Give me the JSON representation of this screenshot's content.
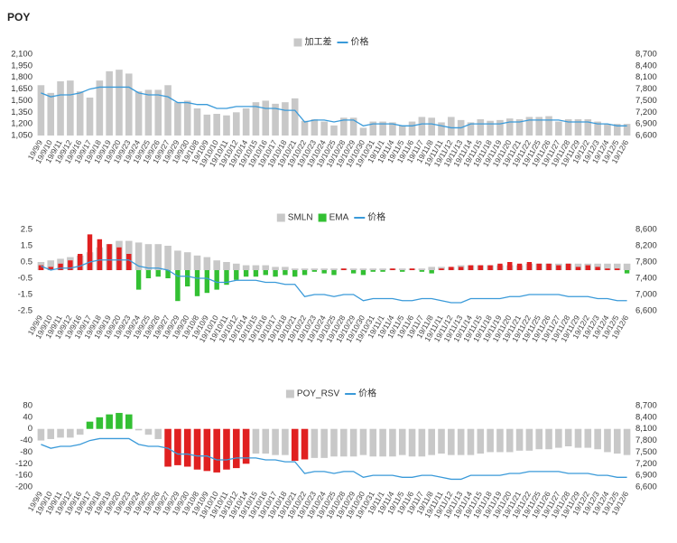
{
  "title": "POY",
  "chart_data": [
    {
      "type": "bar",
      "categories": [
        "19/9/9",
        "19/9/10",
        "19/9/11",
        "19/9/12",
        "19/9/16",
        "19/9/17",
        "19/9/18",
        "19/9/19",
        "19/9/20",
        "19/9/23",
        "19/9/24",
        "19/9/25",
        "19/9/26",
        "19/9/27",
        "19/9/29",
        "19/9/30",
        "19/10/8",
        "19/10/9",
        "19/10/10",
        "19/10/11",
        "19/10/12",
        "19/10/14",
        "19/10/15",
        "19/10/16",
        "19/10/17",
        "19/10/18",
        "19/10/21",
        "19/10/22",
        "19/10/23",
        "19/10/24",
        "19/10/25",
        "19/10/28",
        "19/10/29",
        "19/10/30",
        "19/10/31",
        "19/11/1",
        "19/11/4",
        "19/11/5",
        "19/11/6",
        "19/11/7",
        "19/11/8",
        "19/11/11",
        "19/11/12",
        "19/11/13",
        "19/11/14",
        "19/11/15",
        "19/11/18",
        "19/11/19",
        "19/11/20",
        "19/11/21",
        "19/11/22",
        "19/11/25",
        "19/11/26",
        "19/11/27",
        "19/11/28",
        "19/11/29",
        "19/12/2",
        "19/12/3",
        "19/12/4",
        "19/12/5",
        "19/12/6"
      ],
      "series": [
        {
          "name": "加工差",
          "type": "bar",
          "color": "#c8c8c8",
          "values": [
            1700,
            1600,
            1750,
            1760,
            1620,
            1540,
            1760,
            1880,
            1900,
            1850,
            1620,
            1640,
            1640,
            1700,
            1480,
            1500,
            1400,
            1320,
            1330,
            1310,
            1350,
            1400,
            1480,
            1500,
            1460,
            1480,
            1530,
            1240,
            1260,
            1230,
            1180,
            1280,
            1280,
            1150,
            1230,
            1230,
            1220,
            1180,
            1230,
            1290,
            1280,
            1220,
            1290,
            1250,
            1220,
            1260,
            1240,
            1250,
            1270,
            1260,
            1290,
            1290,
            1300,
            1230,
            1260,
            1260,
            1260,
            1230,
            1200,
            1200,
            1200
          ]
        },
        {
          "name": "价格",
          "type": "line",
          "axis": "y2",
          "color": "#3a9ad9",
          "values": [
            7700,
            7600,
            7650,
            7650,
            7700,
            7800,
            7850,
            7850,
            7850,
            7850,
            7700,
            7650,
            7650,
            7600,
            7450,
            7450,
            7400,
            7400,
            7300,
            7300,
            7350,
            7350,
            7350,
            7300,
            7300,
            7250,
            7250,
            6950,
            7000,
            7000,
            6950,
            7000,
            7000,
            6850,
            6900,
            6900,
            6900,
            6850,
            6850,
            6900,
            6900,
            6850,
            6800,
            6800,
            6900,
            6900,
            6900,
            6900,
            6950,
            6950,
            7000,
            7000,
            7000,
            7000,
            6950,
            6950,
            6950,
            6900,
            6900,
            6850,
            6850
          ]
        }
      ],
      "ylim": [
        1050,
        2100
      ],
      "yticks": [
        {
          "value": 1050,
          "label": "1,050"
        },
        {
          "value": 1200,
          "label": "1,200"
        },
        {
          "value": 1350,
          "label": "1,350"
        },
        {
          "value": 1500,
          "label": "1,500"
        },
        {
          "value": 1650,
          "label": "1,650"
        },
        {
          "value": 1800,
          "label": "1,800"
        },
        {
          "value": 1950,
          "label": "1,950"
        },
        {
          "value": 2100,
          "label": "2,100"
        }
      ],
      "y2lim": [
        6600,
        8700
      ],
      "y2ticks": [
        {
          "value": 6600,
          "label": "6,600"
        },
        {
          "value": 6900,
          "label": "6,900"
        },
        {
          "value": 7200,
          "label": "7,200"
        },
        {
          "value": 7500,
          "label": "7,500"
        },
        {
          "value": 7800,
          "label": "7,800"
        },
        {
          "value": 8100,
          "label": "8,100"
        },
        {
          "value": 8400,
          "label": "8,400"
        },
        {
          "value": 8700,
          "label": "8,700"
        }
      ],
      "grid": false
    },
    {
      "type": "bar",
      "categories": [
        "19/9/9",
        "19/9/10",
        "19/9/11",
        "19/9/12",
        "19/9/16",
        "19/9/17",
        "19/9/18",
        "19/9/19",
        "19/9/20",
        "19/9/23",
        "19/9/24",
        "19/9/25",
        "19/9/26",
        "19/9/27",
        "19/9/29",
        "19/9/30",
        "19/10/8",
        "19/10/9",
        "19/10/10",
        "19/10/11",
        "19/10/12",
        "19/10/14",
        "19/10/15",
        "19/10/16",
        "19/10/17",
        "19/10/18",
        "19/10/21",
        "19/10/22",
        "19/10/23",
        "19/10/24",
        "19/10/25",
        "19/10/28",
        "19/10/29",
        "19/10/30",
        "19/10/31",
        "19/11/1",
        "19/11/4",
        "19/11/5",
        "19/11/6",
        "19/11/7",
        "19/11/8",
        "19/11/11",
        "19/11/12",
        "19/11/13",
        "19/11/14",
        "19/11/15",
        "19/11/18",
        "19/11/19",
        "19/11/20",
        "19/11/21",
        "19/11/22",
        "19/11/25",
        "19/11/26",
        "19/11/27",
        "19/11/28",
        "19/11/29",
        "19/12/2",
        "19/12/3",
        "19/12/4",
        "19/12/5",
        "19/12/6"
      ],
      "series": [
        {
          "name": "SMLN",
          "type": "bar",
          "color": "#c8c8c8",
          "values": [
            0.5,
            0.6,
            0.7,
            0.8,
            0.9,
            1.1,
            1.4,
            1.6,
            1.8,
            1.8,
            1.7,
            1.6,
            1.6,
            1.5,
            1.2,
            1.1,
            0.9,
            0.8,
            0.6,
            0.5,
            0.4,
            0.3,
            0.3,
            0.3,
            0.2,
            0.2,
            0.1,
            0.1,
            0.1,
            0.1,
            0.1,
            0.1,
            0.1,
            0.1,
            0.1,
            0.1,
            0.1,
            0.1,
            0.1,
            0.1,
            0.2,
            0.2,
            0.2,
            0.3,
            0.3,
            0.3,
            0.3,
            0.3,
            0.3,
            0.3,
            0.4,
            0.4,
            0.4,
            0.4,
            0.4,
            0.4,
            0.4,
            0.4,
            0.4,
            0.4,
            0.4
          ]
        },
        {
          "name": "EMA",
          "type": "bar",
          "color": "#33c033",
          "positive_color": "#e02020",
          "values": [
            0.3,
            0.2,
            0.4,
            0.6,
            1.0,
            2.2,
            1.9,
            1.6,
            1.4,
            1.0,
            -1.2,
            -0.5,
            -0.4,
            -0.5,
            -1.9,
            -1.0,
            -1.6,
            -1.4,
            -1.2,
            -0.9,
            -0.6,
            -0.4,
            -0.4,
            -0.3,
            -0.4,
            -0.3,
            -0.4,
            -0.3,
            -0.1,
            -0.2,
            -0.3,
            0.1,
            -0.2,
            -0.3,
            -0.1,
            -0.1,
            0.1,
            -0.1,
            0.1,
            -0.1,
            -0.2,
            0.1,
            0.2,
            0.2,
            0.3,
            0.3,
            0.3,
            0.4,
            0.5,
            0.4,
            0.5,
            0.4,
            0.4,
            0.3,
            0.4,
            0.2,
            0.3,
            0.2,
            0.1,
            0.1,
            -0.2
          ]
        },
        {
          "name": "价格",
          "type": "line",
          "axis": "y2",
          "color": "#3a9ad9",
          "values": [
            7700,
            7600,
            7650,
            7650,
            7700,
            7800,
            7850,
            7850,
            7850,
            7850,
            7700,
            7650,
            7650,
            7600,
            7450,
            7450,
            7400,
            7400,
            7300,
            7300,
            7350,
            7350,
            7350,
            7300,
            7300,
            7250,
            7250,
            6950,
            7000,
            7000,
            6950,
            7000,
            7000,
            6850,
            6900,
            6900,
            6900,
            6850,
            6850,
            6900,
            6900,
            6850,
            6800,
            6800,
            6900,
            6900,
            6900,
            6900,
            6950,
            6950,
            7000,
            7000,
            7000,
            7000,
            6950,
            6950,
            6950,
            6900,
            6900,
            6850,
            6850
          ]
        }
      ],
      "ylim": [
        -2.5,
        2.5
      ],
      "yticks": [
        -2.5,
        -1.5,
        -0.5,
        0.5,
        1.5,
        2.5
      ],
      "y2lim": [
        6600,
        8600
      ],
      "y2ticks": [
        {
          "value": 6600,
          "label": "6,600"
        },
        {
          "value": 7000,
          "label": "7,000"
        },
        {
          "value": 7400,
          "label": "7,400"
        },
        {
          "value": 7800,
          "label": "7,800"
        },
        {
          "value": 8200,
          "label": "8,200"
        },
        {
          "value": 8600,
          "label": "8,600"
        }
      ],
      "grid": false
    },
    {
      "type": "bar",
      "categories": [
        "19/9/9",
        "19/9/10",
        "19/9/11",
        "19/9/12",
        "19/9/16",
        "19/9/17",
        "19/9/18",
        "19/9/19",
        "19/9/20",
        "19/9/23",
        "19/9/24",
        "19/9/25",
        "19/9/26",
        "19/9/27",
        "19/9/29",
        "19/9/30",
        "19/10/8",
        "19/10/9",
        "19/10/10",
        "19/10/11",
        "19/10/12",
        "19/10/14",
        "19/10/15",
        "19/10/16",
        "19/10/17",
        "19/10/18",
        "19/10/21",
        "19/10/22",
        "19/10/23",
        "19/10/24",
        "19/10/25",
        "19/10/28",
        "19/10/29",
        "19/10/30",
        "19/10/31",
        "19/11/1",
        "19/11/4",
        "19/11/5",
        "19/11/6",
        "19/11/7",
        "19/11/8",
        "19/11/11",
        "19/11/12",
        "19/11/13",
        "19/11/14",
        "19/11/15",
        "19/11/18",
        "19/11/19",
        "19/11/20",
        "19/11/21",
        "19/11/22",
        "19/11/25",
        "19/11/26",
        "19/11/27",
        "19/11/28",
        "19/11/29",
        "19/12/2",
        "19/12/3",
        "19/12/4",
        "19/12/5",
        "19/12/6"
      ],
      "series": [
        {
          "name": "POY_RSV",
          "type": "bar",
          "color": "#c8c8c8",
          "values": [
            -40,
            -35,
            -30,
            -30,
            -20,
            25,
            40,
            50,
            55,
            50,
            -5,
            -20,
            -35,
            -130,
            -125,
            -130,
            -140,
            -145,
            -150,
            -140,
            -135,
            -120,
            -85,
            -85,
            -90,
            -90,
            -110,
            -105,
            -100,
            -100,
            -95,
            -95,
            -95,
            -90,
            -95,
            -95,
            -95,
            -90,
            -95,
            -95,
            -90,
            -85,
            -90,
            -90,
            -90,
            -85,
            -80,
            -80,
            -80,
            -75,
            -75,
            -70,
            -70,
            -65,
            -60,
            -65,
            -65,
            -70,
            -80,
            -85,
            -90
          ],
          "colors": [
            "#c8c8c8",
            "#c8c8c8",
            "#c8c8c8",
            "#c8c8c8",
            "#c8c8c8",
            "#33c033",
            "#33c033",
            "#33c033",
            "#33c033",
            "#33c033",
            "#c8c8c8",
            "#c8c8c8",
            "#c8c8c8",
            "#e02020",
            "#e02020",
            "#e02020",
            "#e02020",
            "#e02020",
            "#e02020",
            "#e02020",
            "#e02020",
            "#e02020",
            "#c8c8c8",
            "#c8c8c8",
            "#c8c8c8",
            "#c8c8c8",
            "#e02020",
            "#e02020",
            "#c8c8c8",
            "#c8c8c8",
            "#c8c8c8",
            "#c8c8c8",
            "#c8c8c8",
            "#c8c8c8",
            "#c8c8c8",
            "#c8c8c8",
            "#c8c8c8",
            "#c8c8c8",
            "#c8c8c8",
            "#c8c8c8",
            "#c8c8c8",
            "#c8c8c8",
            "#c8c8c8",
            "#c8c8c8",
            "#c8c8c8",
            "#c8c8c8",
            "#c8c8c8",
            "#c8c8c8",
            "#c8c8c8",
            "#c8c8c8",
            "#c8c8c8",
            "#c8c8c8",
            "#c8c8c8",
            "#c8c8c8",
            "#c8c8c8",
            "#c8c8c8",
            "#c8c8c8",
            "#c8c8c8",
            "#c8c8c8",
            "#c8c8c8",
            "#c8c8c8"
          ]
        },
        {
          "name": "价格",
          "type": "line",
          "axis": "y2",
          "color": "#3a9ad9",
          "values": [
            7700,
            7600,
            7650,
            7650,
            7700,
            7800,
            7850,
            7850,
            7850,
            7850,
            7700,
            7650,
            7650,
            7600,
            7450,
            7450,
            7400,
            7400,
            7300,
            7300,
            7350,
            7350,
            7350,
            7300,
            7300,
            7250,
            7250,
            6950,
            7000,
            7000,
            6950,
            7000,
            7000,
            6850,
            6900,
            6900,
            6900,
            6850,
            6850,
            6900,
            6900,
            6850,
            6800,
            6800,
            6900,
            6900,
            6900,
            6900,
            6950,
            6950,
            7000,
            7000,
            7000,
            7000,
            6950,
            6950,
            6950,
            6900,
            6900,
            6850,
            6850
          ]
        }
      ],
      "ylim": [
        -200,
        80
      ],
      "yticks": [
        -200,
        -160,
        -120,
        -80,
        -40,
        0,
        40,
        80
      ],
      "y2lim": [
        6600,
        8700
      ],
      "y2ticks": [
        {
          "value": 6600,
          "label": "6,600"
        },
        {
          "value": 6900,
          "label": "6,900"
        },
        {
          "value": 7200,
          "label": "7,200"
        },
        {
          "value": 7500,
          "label": "7,500"
        },
        {
          "value": 7800,
          "label": "7,800"
        },
        {
          "value": 8100,
          "label": "8,100"
        },
        {
          "value": 8400,
          "label": "8,400"
        },
        {
          "value": 8700,
          "label": "8,700"
        }
      ],
      "grid": false
    }
  ]
}
